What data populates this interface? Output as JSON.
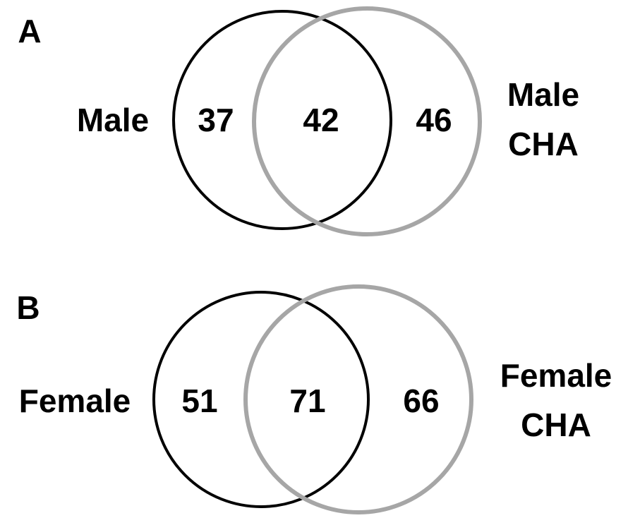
{
  "panels": [
    {
      "label": "A",
      "left_set": "Male",
      "right_set_lines": [
        "Male",
        "CHA"
      ],
      "left_only": "37",
      "both": "42",
      "right_only": "46"
    },
    {
      "label": "B",
      "left_set": "Female",
      "right_set_lines": [
        "Female",
        "CHA"
      ],
      "left_only": "51",
      "both": "71",
      "right_only": "66"
    }
  ]
}
